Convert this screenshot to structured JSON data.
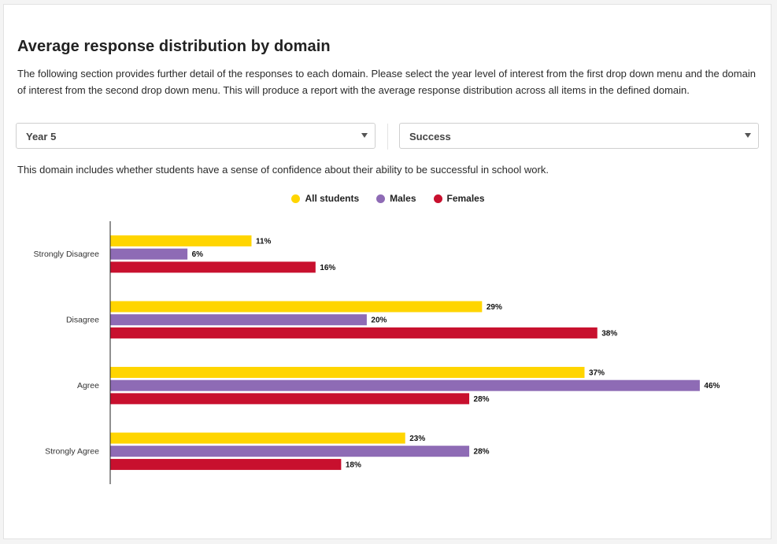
{
  "page": {
    "title": "Average response distribution by domain",
    "description": "The following section provides further detail of the responses to each domain. Please select the year level of interest from the first drop down menu and the domain of interest from the second drop down menu. This will produce a report with the average response distribution across all items in the defined domain.",
    "year_select": "Year 5",
    "domain_select": "Success",
    "domain_note": "This domain includes whether students have a sense of confidence about their ability to be successful in school work."
  },
  "colors": {
    "all": "#FFD500",
    "males": "#8E6BB5",
    "females": "#C8102E"
  },
  "chart_data": {
    "type": "bar",
    "orientation": "horizontal",
    "categories": [
      "Strongly Disagree",
      "Disagree",
      "Agree",
      "Strongly Agree"
    ],
    "series": [
      {
        "name": "All students",
        "values": [
          11,
          29,
          37,
          23
        ]
      },
      {
        "name": "Males",
        "values": [
          6,
          20,
          46,
          28
        ]
      },
      {
        "name": "Females",
        "values": [
          16,
          38,
          28,
          18
        ]
      }
    ],
    "value_suffix": "%",
    "xlim": [
      0,
      50
    ],
    "grid": false,
    "legend_position": "top-center"
  }
}
